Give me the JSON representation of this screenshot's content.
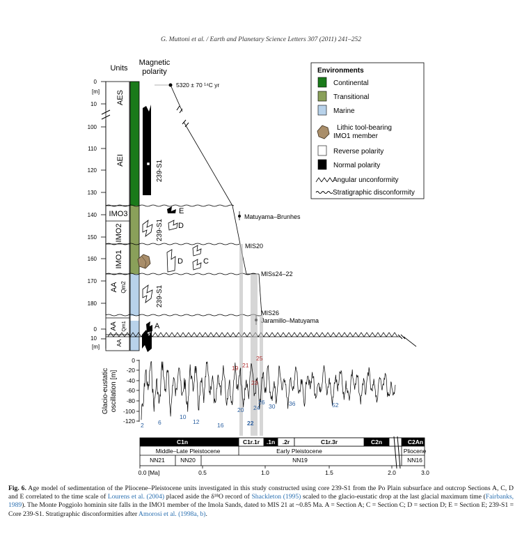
{
  "running_head": "G. Muttoni et al. / Earth and Planetary Science Letters 307 (2011) 241–252",
  "figure": {
    "units_header": "Units",
    "polarity_header": [
      "Magnetic",
      "polarity"
    ],
    "depth_unit": "[m]",
    "upper_depth_ticks": [
      "0",
      "10",
      "100",
      "110",
      "120",
      "130",
      "140",
      "150",
      "160",
      "170",
      "180"
    ],
    "lower_depth_ticks": [
      "0",
      "10"
    ],
    "units": [
      {
        "name": "AES",
        "env": "continental"
      },
      {
        "name": "AEI",
        "env": "continental"
      },
      {
        "name": "IMO3",
        "env": "transitional"
      },
      {
        "name": "IMO2",
        "env": "transitional"
      },
      {
        "name": "IMO1",
        "env": "transitional"
      },
      {
        "name": "AA",
        "sub": "Qm2",
        "env": "marine"
      },
      {
        "name": "AA",
        "sub": "Qm1",
        "env": "marine"
      },
      {
        "name": "AA",
        "env": "marine"
      }
    ],
    "core_labels": [
      "239-S1",
      "239-S1",
      "239-S1"
    ],
    "section_labels": [
      "E",
      "D",
      "D",
      "C",
      "A"
    ],
    "date_label": "5320 ± 70 ¹⁴C yr",
    "correlation_labels": [
      "Matuyama–Brunhes",
      "MIS20",
      "MISs24–22",
      "MIS26",
      "Jaramillo–Matuyama"
    ],
    "legend": {
      "title": "Environments",
      "items": [
        {
          "label": "Continental",
          "color": "#1a7a1a"
        },
        {
          "label": "Transitional",
          "color": "#8aa05a"
        },
        {
          "label": "Marine",
          "color": "#b8d2ea"
        },
        {
          "label": "Lithic tool-bearing IMO1 member",
          "lines": [
            "Lithic tool-bearing",
            "IMO1 member"
          ]
        },
        {
          "label": "Reverse polarity",
          "color": "#ffffff"
        },
        {
          "label": "Normal polarity",
          "color": "#000000"
        },
        {
          "label": "Angular unconformity"
        },
        {
          "label": "Stratigraphic disconformity"
        }
      ]
    },
    "sealevel": {
      "ylabel": [
        "Glacio-eustatic",
        "oscillation [m]"
      ],
      "yticks": [
        "0",
        "-20",
        "-40",
        "-60",
        "-80",
        "-100",
        "-120"
      ],
      "mis_red": [
        "19",
        "21",
        "25",
        "23"
      ],
      "mis_blue": [
        "2",
        "6",
        "10",
        "12",
        "16",
        "20",
        "24",
        "26",
        "30",
        "36",
        "52"
      ],
      "mis_bold": "22"
    },
    "timescale": {
      "chrons": [
        "C1n",
        "C1r.1r",
        ".1n",
        ".2r",
        "C1r.3r",
        "C2n",
        "C2An"
      ],
      "epochs": [
        "Middle–Late Pleistocene",
        "Early Pleistocene",
        "Pliocene"
      ],
      "nanno": [
        "NN21",
        "NN20",
        "NN19",
        "NN16"
      ],
      "ticks": [
        "0.0 [Ma]",
        "0.5",
        "1.0",
        "1.5",
        "2.0",
        "3.0"
      ]
    }
  },
  "caption": {
    "label": "Fig. 6.",
    "parts": [
      {
        "t": " Age model of sedimentation of the Pliocene–Pleistocene units investigated in this study constructed using core 239-S1 from the Po Plain subsurface and outcrop Sections A, C, D and E correlated to the time scale of "
      },
      {
        "t": "Lourens et al. (2004)",
        "ref": true
      },
      {
        "t": " placed aside the δ¹⁸O record of "
      },
      {
        "t": "Shackleton (1995)",
        "ref": true
      },
      {
        "t": " scaled to the glacio-eustatic drop at the last glacial maximum time ("
      },
      {
        "t": "Fairbanks, 1989",
        "ref": true
      },
      {
        "t": "). The Monte Poggiolo hominin site falls in the IMO1 member of the Imola Sands, dated to MIS 21 at ~0.85 Ma. A = Section A; C = Section C; D = section D; E = Section E; 239-S1 = Core 239-S1. Stratigraphic disconformities after "
      },
      {
        "t": "Amorosi et al. (1998a, b)",
        "ref": true
      },
      {
        "t": "."
      }
    ]
  }
}
